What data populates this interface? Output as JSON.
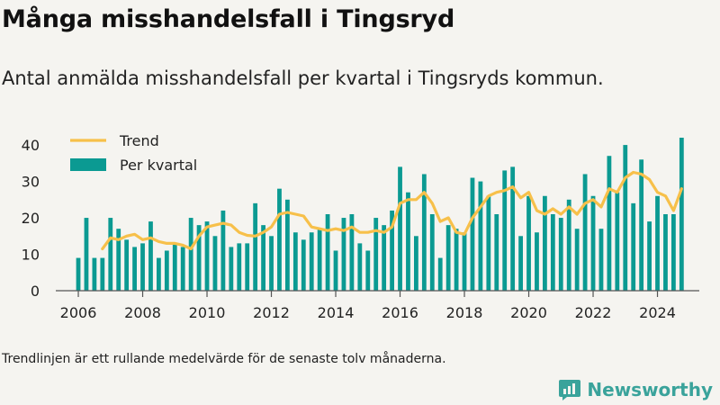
{
  "header": {
    "title": "Många misshandelsfall i Tingsryd",
    "subtitle": "Antal anmälda misshandelsfall per kvartal i Tingsryds kommun."
  },
  "footnote": "Trendlinjen är ett rullande medelvärde för de senaste tolv månaderna.",
  "brand": {
    "name": "Newsworthy",
    "color": "#3aa39b"
  },
  "chart_data": {
    "type": "bar",
    "legend_position": "top-left",
    "grid": false,
    "colors": {
      "bar": "#0b9a92",
      "trend": "#f7c04a"
    },
    "legend": [
      {
        "key": "trend",
        "label": "Trend"
      },
      {
        "key": "bars",
        "label": "Per kvartal"
      }
    ],
    "ylim": [
      0,
      42
    ],
    "yticks": [
      0,
      10,
      20,
      30,
      40
    ],
    "xlim": [
      2005.3,
      2025.3
    ],
    "xticks": [
      2006,
      2008,
      2010,
      2012,
      2014,
      2016,
      2018,
      2020,
      2022,
      2024
    ],
    "x": [
      2006.0,
      2006.25,
      2006.5,
      2006.75,
      2007.0,
      2007.25,
      2007.5,
      2007.75,
      2008.0,
      2008.25,
      2008.5,
      2008.75,
      2009.0,
      2009.25,
      2009.5,
      2009.75,
      2010.0,
      2010.25,
      2010.5,
      2010.75,
      2011.0,
      2011.25,
      2011.5,
      2011.75,
      2012.0,
      2012.25,
      2012.5,
      2012.75,
      2013.0,
      2013.25,
      2013.5,
      2013.75,
      2014.0,
      2014.25,
      2014.5,
      2014.75,
      2015.0,
      2015.25,
      2015.5,
      2015.75,
      2016.0,
      2016.25,
      2016.5,
      2016.75,
      2017.0,
      2017.25,
      2017.5,
      2017.75,
      2018.0,
      2018.25,
      2018.5,
      2018.75,
      2019.0,
      2019.25,
      2019.5,
      2019.75,
      2020.0,
      2020.25,
      2020.5,
      2020.75,
      2021.0,
      2021.25,
      2021.5,
      2021.75,
      2022.0,
      2022.25,
      2022.5,
      2022.75,
      2023.0,
      2023.25,
      2023.5,
      2023.75,
      2024.0,
      2024.25,
      2024.5,
      2024.75
    ],
    "series": [
      {
        "name": "Per kvartal",
        "kind": "bar",
        "values": [
          9,
          20,
          9,
          9,
          20,
          17,
          14,
          12,
          13,
          19,
          9,
          11,
          13,
          12,
          20,
          18,
          19,
          15,
          22,
          12,
          13,
          13,
          24,
          18,
          15,
          28,
          25,
          16,
          14,
          16,
          17,
          21,
          11,
          20,
          21,
          13,
          11,
          20,
          18,
          22,
          34,
          27,
          15,
          32,
          21,
          9,
          18,
          17,
          16,
          31,
          30,
          26,
          21,
          33,
          34,
          15,
          26,
          16,
          26,
          21,
          20,
          25,
          17,
          32,
          26,
          17,
          37,
          27,
          40,
          24,
          36,
          19,
          26,
          21,
          21,
          42
        ]
      },
      {
        "name": "Trend",
        "kind": "line",
        "x": [
          2006.75,
          2007.0,
          2007.25,
          2007.5,
          2007.75,
          2008.0,
          2008.25,
          2008.5,
          2008.75,
          2009.0,
          2009.25,
          2009.5,
          2009.75,
          2010.0,
          2010.25,
          2010.5,
          2010.75,
          2011.0,
          2011.25,
          2011.5,
          2011.75,
          2012.0,
          2012.25,
          2012.5,
          2012.75,
          2013.0,
          2013.25,
          2013.5,
          2013.75,
          2014.0,
          2014.25,
          2014.5,
          2014.75,
          2015.0,
          2015.25,
          2015.5,
          2015.75,
          2016.0,
          2016.25,
          2016.5,
          2016.75,
          2017.0,
          2017.25,
          2017.5,
          2017.75,
          2018.0,
          2018.25,
          2018.5,
          2018.75,
          2019.0,
          2019.25,
          2019.5,
          2019.75,
          2020.0,
          2020.25,
          2020.5,
          2020.75,
          2021.0,
          2021.25,
          2021.5,
          2021.75,
          2022.0,
          2022.25,
          2022.5,
          2022.75,
          2023.0,
          2023.25,
          2023.5,
          2023.75,
          2024.0,
          2024.25,
          2024.5,
          2024.75
        ],
        "values": [
          11.5,
          14.5,
          14.0,
          15.0,
          15.5,
          14.0,
          14.5,
          13.5,
          13.0,
          13.0,
          12.5,
          11.5,
          15.0,
          17.5,
          18.0,
          18.5,
          18.0,
          16.0,
          15.2,
          15.0,
          16.0,
          17.5,
          21.0,
          21.5,
          21.0,
          20.5,
          17.5,
          17.0,
          16.5,
          17.0,
          16.5,
          17.5,
          16.0,
          16.0,
          16.5,
          16.0,
          17.5,
          24.0,
          25.0,
          25.0,
          27.0,
          24.0,
          19.0,
          20.0,
          16.0,
          15.5,
          20.0,
          23.0,
          26.0,
          27.0,
          27.5,
          28.5,
          25.5,
          27.0,
          22.0,
          21.0,
          22.5,
          21.0,
          23.0,
          21.0,
          24.0,
          25.0,
          23.0,
          28.0,
          27.0,
          31.0,
          32.5,
          32.0,
          30.5,
          27.0,
          26.0,
          22.0,
          28.0
        ]
      }
    ]
  }
}
